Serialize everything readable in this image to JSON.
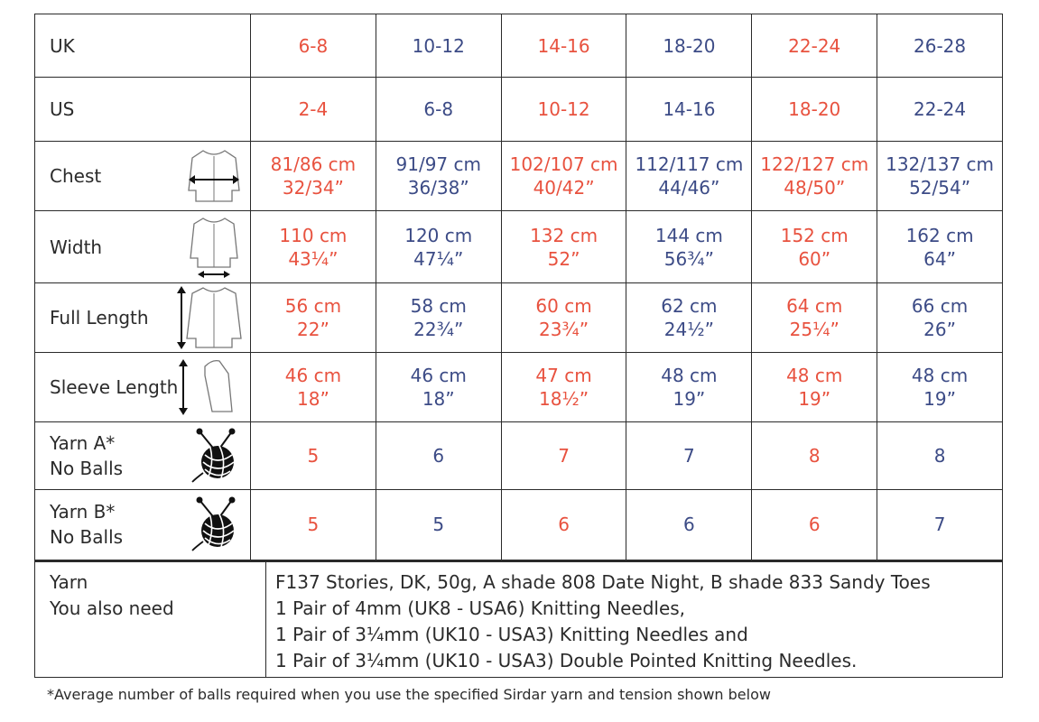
{
  "rows": [
    {
      "label": "UK",
      "values": [
        "6-8",
        "10-12",
        "14-16",
        "18-20",
        "22-24",
        "26-28"
      ]
    },
    {
      "label": "US",
      "values": [
        "2-4",
        "6-8",
        "10-12",
        "14-16",
        "18-20",
        "22-24"
      ]
    },
    {
      "label": "Chest",
      "values": [
        [
          "81/86 cm",
          "32/34”"
        ],
        [
          "91/97 cm",
          "36/38”"
        ],
        [
          "102/107 cm",
          "40/42”"
        ],
        [
          "112/117 cm",
          "44/46”"
        ],
        [
          "122/127 cm",
          "48/50”"
        ],
        [
          "132/137 cm",
          "52/54”"
        ]
      ]
    },
    {
      "label": "Width",
      "values": [
        [
          "110 cm",
          "43¼”"
        ],
        [
          "120 cm",
          "47¼”"
        ],
        [
          "132 cm",
          "52”"
        ],
        [
          "144 cm",
          "56¾”"
        ],
        [
          "152 cm",
          "60”"
        ],
        [
          "162 cm",
          "64”"
        ]
      ]
    },
    {
      "label": "Full Length",
      "values": [
        [
          "56 cm",
          "22”"
        ],
        [
          "58 cm",
          "22¾”"
        ],
        [
          "60 cm",
          "23¾”"
        ],
        [
          "62 cm",
          "24½”"
        ],
        [
          "64 cm",
          "25¼”"
        ],
        [
          "66 cm",
          "26”"
        ]
      ]
    },
    {
      "label": "Sleeve Length",
      "values": [
        [
          "46 cm",
          "18”"
        ],
        [
          "46 cm",
          "18”"
        ],
        [
          "47 cm",
          "18½”"
        ],
        [
          "48 cm",
          "19”"
        ],
        [
          "48 cm",
          "19”"
        ],
        [
          "48 cm",
          "19”"
        ]
      ]
    },
    {
      "label": [
        "Yarn A*",
        "No Balls"
      ],
      "values": [
        "5",
        "6",
        "7",
        "7",
        "8",
        "8"
      ]
    },
    {
      "label": [
        "Yarn B*",
        "No Balls"
      ],
      "values": [
        "5",
        "5",
        "6",
        "6",
        "6",
        "7"
      ]
    }
  ],
  "yarn": {
    "label_line1": "Yarn",
    "label_line2": "You also need",
    "lines": [
      "F137 Stories, DK, 50g, A shade 808 Date Night, B shade 833 Sandy Toes",
      "1 Pair of 4mm (UK8 - USA6) Knitting Needles,",
      "1 Pair of 3¼mm (UK10 - USA3) Knitting Needles and",
      "1 Pair of 3¼mm (UK10 - USA3) Double Pointed Knitting Needles."
    ]
  },
  "footnote": "*Average number of balls required when you use the specified Sirdar yarn and tension shown below",
  "colors": {
    "odd": "#e8523f",
    "even": "#3c4b86"
  }
}
